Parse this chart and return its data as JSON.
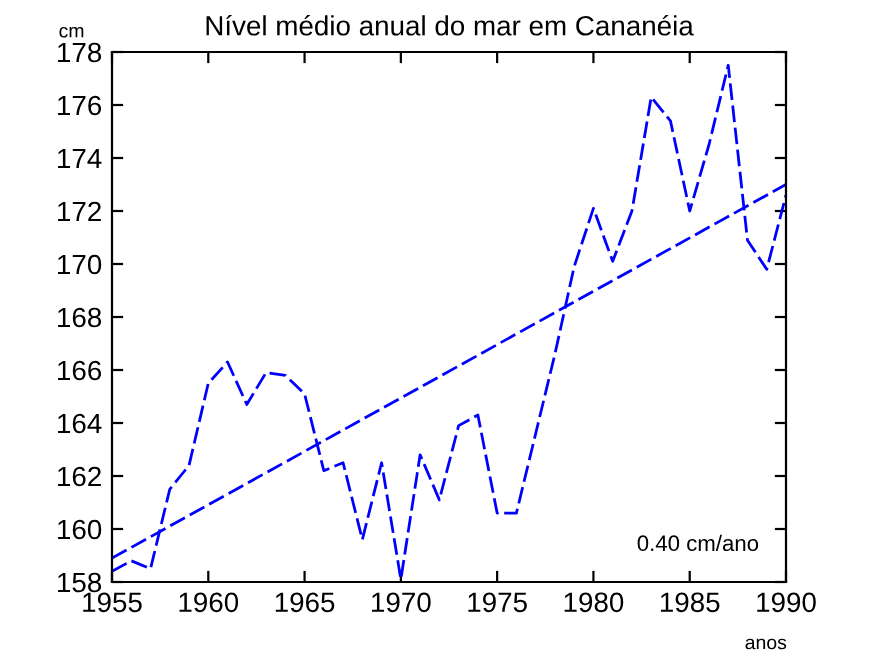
{
  "chart_data": {
    "type": "line",
    "title": "Nível médio anual do mar em Cananéia",
    "xlabel": "anos",
    "ylabel": "cm",
    "x": [
      1955,
      1956,
      1957,
      1958,
      1959,
      1960,
      1961,
      1962,
      1963,
      1964,
      1965,
      1966,
      1967,
      1968,
      1969,
      1970,
      1971,
      1972,
      1973,
      1974,
      1975,
      1976,
      1977,
      1978,
      1979,
      1980,
      1981,
      1982,
      1983,
      1984,
      1985,
      1986,
      1987,
      1988,
      1989,
      1990
    ],
    "series": [
      {
        "color": "#0000ff",
        "line_style": "dashed",
        "values": [
          158.4,
          158.8,
          158.5,
          161.5,
          162.4,
          165.5,
          166.3,
          164.7,
          165.9,
          165.8,
          165.1,
          162.2,
          162.5,
          159.6,
          162.5,
          158.1,
          162.8,
          161.1,
          163.9,
          164.3,
          160.6,
          160.6,
          163.6,
          166.6,
          169.9,
          172.1,
          170.1,
          172.0,
          176.3,
          175.4,
          172.0,
          174.5,
          177.5,
          170.9,
          169.8,
          172.6
        ]
      },
      {
        "color": "#0000ff",
        "line_style": "dashed",
        "x": [
          1955,
          1990
        ],
        "values": [
          158.9,
          173.0
        ]
      }
    ],
    "annotations": [
      {
        "text": "0.40 cm/ano"
      }
    ],
    "xlim": [
      1955,
      1990
    ],
    "xticks": [
      1955,
      1960,
      1965,
      1970,
      1975,
      1980,
      1985,
      1990
    ],
    "ylim": [
      158,
      178
    ],
    "yticks": [
      158,
      160,
      162,
      164,
      166,
      168,
      170,
      172,
      174,
      176,
      178
    ],
    "grid": false,
    "legend": false,
    "marker": "none"
  }
}
